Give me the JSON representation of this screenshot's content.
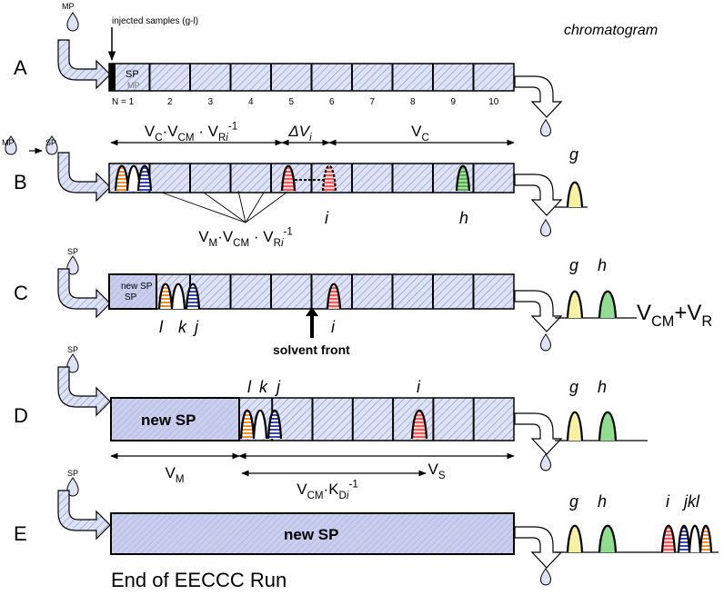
{
  "header": {
    "mp": "MP",
    "injected": "injected samples (g-l)",
    "chromatogram": "chromatogram"
  },
  "panel_a": {
    "label": "A",
    "sp": "SP",
    "mp": "MP",
    "cells": [
      "N = 1",
      "2",
      "3",
      "4",
      "5",
      "6",
      "7",
      "8",
      "9",
      "10"
    ]
  },
  "panel_b": {
    "label": "B",
    "mp": "MP",
    "sp": "SP",
    "formula_top": [
      {
        "text": "V",
        "style": "n"
      },
      {
        "text": "C",
        "style": "sub"
      },
      {
        "text": "·V",
        "style": "n"
      },
      {
        "text": "CM",
        "style": "sub"
      },
      {
        "text": " · V",
        "style": "n"
      },
      {
        "text": "R",
        "style": "sub"
      },
      {
        "text": "i",
        "style": "subi"
      },
      {
        "text": "-1",
        "style": "sup"
      }
    ],
    "delta": [
      {
        "text": "ΔV",
        "style": "i"
      },
      {
        "text": "i",
        "style": "subi"
      }
    ],
    "vc": [
      {
        "text": "V",
        "style": "n"
      },
      {
        "text": "C",
        "style": "sub"
      }
    ],
    "formula_bottom": [
      {
        "text": "V",
        "style": "n"
      },
      {
        "text": "M",
        "style": "sub"
      },
      {
        "text": "·V",
        "style": "n"
      },
      {
        "text": "CM",
        "style": "sub"
      },
      {
        "text": " · V",
        "style": "n"
      },
      {
        "text": "R",
        "style": "sub"
      },
      {
        "text": "i",
        "style": "subi"
      },
      {
        "text": "-1",
        "style": "sup"
      }
    ],
    "peak_i": "i",
    "peak_h": "h",
    "chrom": [
      "g"
    ]
  },
  "panel_c": {
    "label": "C",
    "sp": "SP",
    "new_sp": "new SP",
    "peaks": [
      "l",
      "k",
      "j",
      "i"
    ],
    "solvent_front": "solvent front",
    "chrom": [
      "g",
      "h"
    ],
    "sum": [
      {
        "text": "V",
        "style": "n"
      },
      {
        "text": "CM",
        "style": "sub"
      },
      {
        "text": "+V",
        "style": "n"
      },
      {
        "text": "R",
        "style": "sub"
      }
    ]
  },
  "panel_d": {
    "label": "D",
    "sp": "SP",
    "new_sp": "new SP",
    "peaks": [
      "l",
      "k",
      "j",
      "i"
    ],
    "chrom": [
      "g",
      "h"
    ],
    "vm": [
      {
        "text": "V",
        "style": "n"
      },
      {
        "text": "M",
        "style": "sub"
      }
    ],
    "vs": [
      {
        "text": "V",
        "style": "n"
      },
      {
        "text": "S",
        "style": "sub"
      }
    ],
    "formula": [
      {
        "text": "V",
        "style": "n"
      },
      {
        "text": "CM",
        "style": "sub"
      },
      {
        "text": "·K",
        "style": "n"
      },
      {
        "text": "D",
        "style": "sub"
      },
      {
        "text": "i",
        "style": "subi"
      },
      {
        "text": "-1",
        "style": "sup"
      }
    ]
  },
  "panel_e": {
    "label": "E",
    "sp": "SP",
    "new_sp": "new SP",
    "chrom": [
      "g",
      "h",
      "i",
      "jkl"
    ],
    "footer": "End of EECCC Run"
  }
}
